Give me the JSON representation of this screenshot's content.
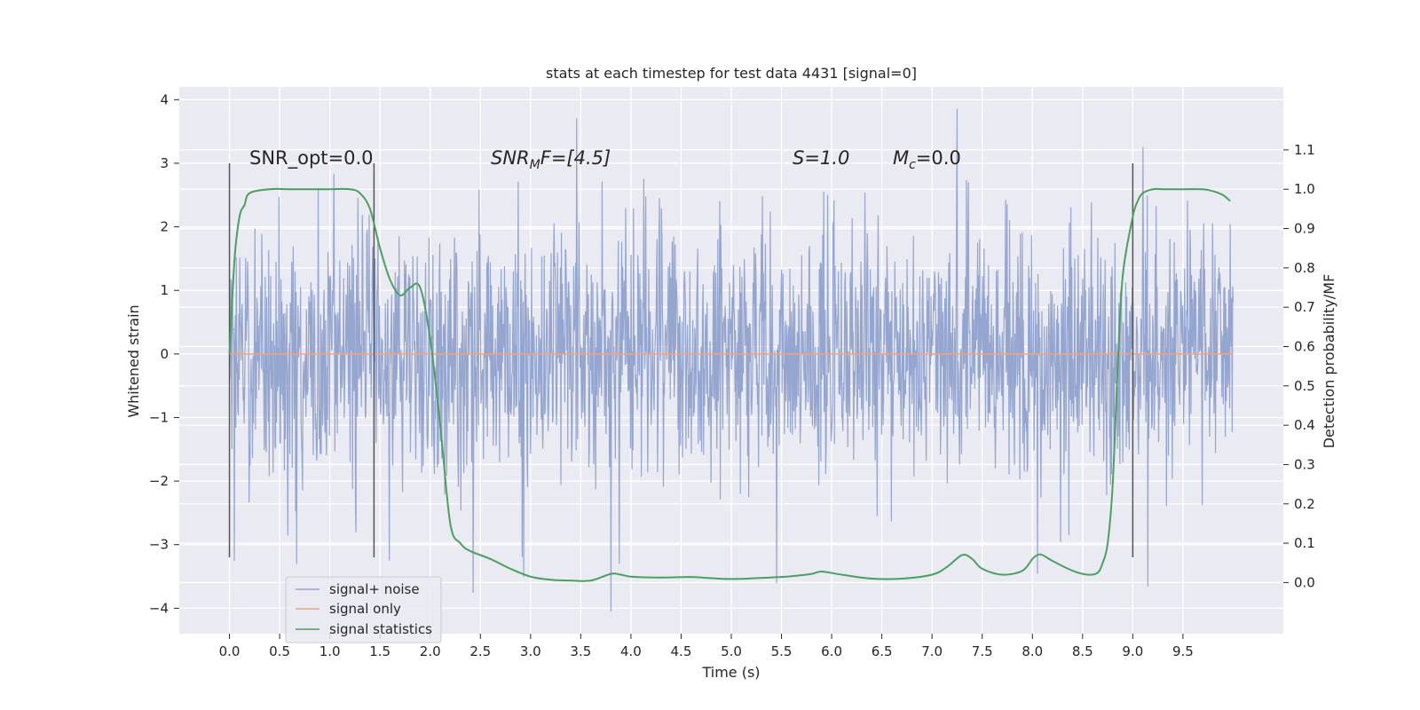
{
  "chart_data": {
    "type": "line",
    "title": "stats at each timestep for test data 4431 [signal=0]",
    "xlabel": "Time (s)",
    "ylabel": "Whitened strain",
    "ylabel_right": "Detection probability/MF",
    "xlim": [
      -0.5,
      10.5
    ],
    "ylim": [
      -4.4,
      4.2
    ],
    "ylim_right": [
      -0.13,
      1.26
    ],
    "x_ticks": [
      "0.0",
      "0.5",
      "1.0",
      "1.5",
      "2.0",
      "2.5",
      "3.0",
      "3.5",
      "4.0",
      "4.5",
      "5.0",
      "5.5",
      "6.0",
      "6.5",
      "7.0",
      "7.5",
      "8.0",
      "8.5",
      "9.0",
      "9.5"
    ],
    "y_ticks": [
      "4",
      "3",
      "2",
      "1",
      "0",
      "−1",
      "−2",
      "−3",
      "−4"
    ],
    "y_ticks_right": [
      "1.1",
      "1.0",
      "0.9",
      "0.8",
      "0.7",
      "0.6",
      "0.5",
      "0.4",
      "0.3",
      "0.2",
      "0.1",
      "0.0"
    ],
    "grid": true,
    "legend_position": "lower-left",
    "annotations": {
      "snr_opt": "SNR_opt=0.0",
      "snr_mf_base": "SNR",
      "snr_mf_sub": "M",
      "snr_mf_rest": "F=[4.5]",
      "s_value": "S=1.0",
      "mc_base": "M",
      "mc_sub": "c",
      "mc_rest": "=0.0"
    },
    "vlines_x": [
      0.0,
      1.44,
      9.0
    ],
    "series": [
      {
        "name": "signal+ noise",
        "color": "#94a5cf",
        "axis": "left",
        "x_range": [
          0.0,
          10.0
        ],
        "n_points": 2048,
        "envelope_typical": [
          -2.3,
          2.4
        ],
        "extremes": [
          {
            "x": 3.46,
            "y": 3.7
          },
          {
            "x": 7.25,
            "y": 3.85
          },
          {
            "x": 3.8,
            "y": -4.05
          },
          {
            "x": 2.43,
            "y": -3.75
          },
          {
            "x": 9.15,
            "y": -3.65
          },
          {
            "x": 8.05,
            "y": -3.45
          },
          {
            "x": 5.45,
            "y": -3.6
          },
          {
            "x": 2.93,
            "y": -3.5
          },
          {
            "x": 0.05,
            "y": -3.25
          },
          {
            "x": 9.1,
            "y": 3.25
          }
        ]
      },
      {
        "name": "signal only",
        "color": "#e8a68a",
        "axis": "left",
        "x": [
          0.0,
          10.0
        ],
        "values": [
          0.0,
          0.0
        ]
      },
      {
        "name": "signal statistics",
        "color": "#4c9f5e",
        "axis": "right",
        "x": [
          0.0,
          0.05,
          0.1,
          0.15,
          0.2,
          0.4,
          0.6,
          0.8,
          1.0,
          1.2,
          1.3,
          1.4,
          1.5,
          1.6,
          1.7,
          1.8,
          1.9,
          2.0,
          2.1,
          2.2,
          2.3,
          2.4,
          2.6,
          2.8,
          3.0,
          3.2,
          3.4,
          3.6,
          3.8,
          3.9,
          4.0,
          4.2,
          4.4,
          4.6,
          5.0,
          5.4,
          5.6,
          5.8,
          5.9,
          6.1,
          6.4,
          6.7,
          7.0,
          7.15,
          7.3,
          7.4,
          7.5,
          7.7,
          7.9,
          8.0,
          8.05,
          8.1,
          8.2,
          8.4,
          8.55,
          8.65,
          8.7,
          8.75,
          8.8,
          8.85,
          8.9,
          9.0,
          9.05,
          9.1,
          9.2,
          9.3,
          9.5,
          9.7,
          9.8,
          9.9,
          9.97
        ],
        "values": [
          0.58,
          0.82,
          0.93,
          0.96,
          0.99,
          1.0,
          1.0,
          1.0,
          1.0,
          1.0,
          0.99,
          0.95,
          0.85,
          0.77,
          0.73,
          0.75,
          0.75,
          0.62,
          0.4,
          0.15,
          0.1,
          0.08,
          0.06,
          0.035,
          0.015,
          0.007,
          0.005,
          0.005,
          0.022,
          0.02,
          0.015,
          0.013,
          0.013,
          0.014,
          0.009,
          0.013,
          0.016,
          0.022,
          0.028,
          0.02,
          0.01,
          0.01,
          0.02,
          0.04,
          0.07,
          0.06,
          0.035,
          0.02,
          0.03,
          0.06,
          0.07,
          0.07,
          0.055,
          0.03,
          0.02,
          0.025,
          0.05,
          0.1,
          0.25,
          0.55,
          0.78,
          0.93,
          0.97,
          0.99,
          1.0,
          1.0,
          1.0,
          1.0,
          0.995,
          0.985,
          0.97
        ]
      }
    ]
  }
}
